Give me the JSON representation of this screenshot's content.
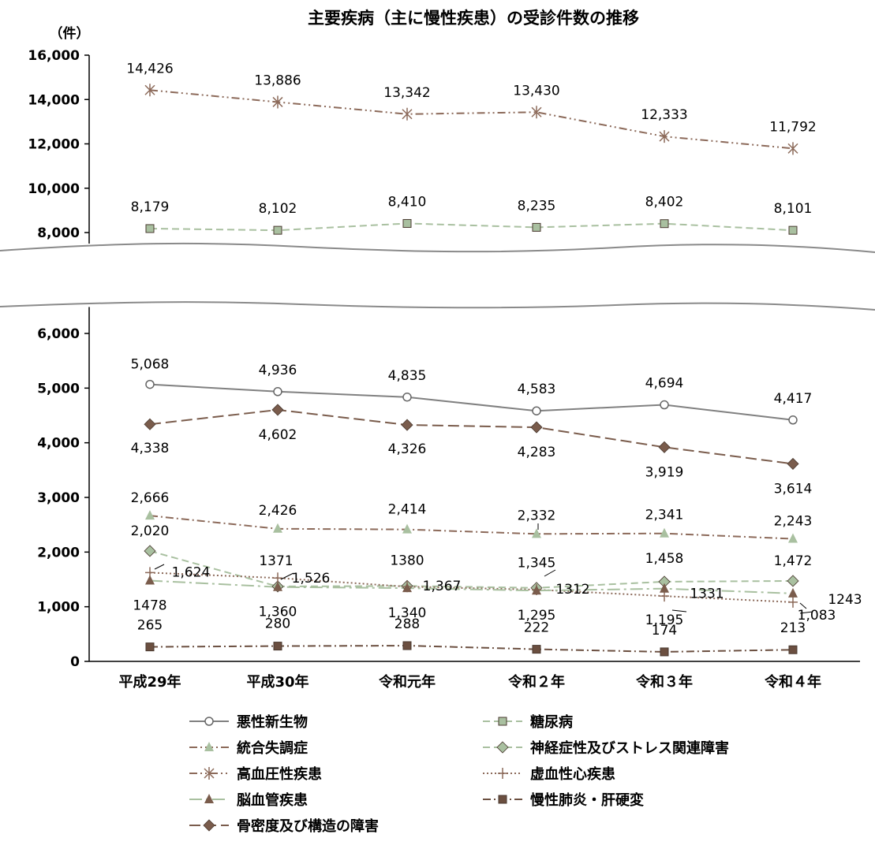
{
  "chart_data": {
    "type": "line",
    "title": "主要疾病（主に慢性疾患）の受診件数の推移",
    "ylabel": "（件）",
    "categories": [
      "平成29年",
      "平成30年",
      "令和元年",
      "令和２年",
      "令和３年",
      "令和４年"
    ],
    "axis_break": true,
    "upper_panel": {
      "ylim": [
        8000,
        16000
      ],
      "ticks": [
        "8,000",
        "10,000",
        "12,000",
        "14,000",
        "16,000"
      ]
    },
    "lower_panel": {
      "ylim": [
        0,
        6000
      ],
      "ticks": [
        "0",
        "1,000",
        "2,000",
        "3,000",
        "4,000",
        "5,000",
        "6,000"
      ]
    },
    "grid": false,
    "legend_position": "bottom",
    "series": [
      {
        "name": "悪性新生物",
        "values": [
          5068,
          4936,
          4835,
          4583,
          4694,
          4417
        ],
        "labels": [
          "5,068",
          "4,936",
          "4,835",
          "4,583",
          "4,694",
          "4,417"
        ],
        "color": "#808080",
        "marker": "circle-open",
        "dash": "solid",
        "panel": "lower"
      },
      {
        "name": "糖尿病",
        "values": [
          8179,
          8102,
          8410,
          8235,
          8402,
          8101
        ],
        "labels": [
          "8,179",
          "8,102",
          "8,410",
          "8,235",
          "8,402",
          "8,101"
        ],
        "color": "#a9c0a0",
        "marker": "square",
        "dash": "dashed",
        "panel": "upper"
      },
      {
        "name": "統合失調症",
        "values": [
          2666,
          2426,
          2414,
          2332,
          2341,
          2243
        ],
        "labels": [
          "2,666",
          "2,426",
          "2,414",
          "2,332",
          "2,341",
          "2,243"
        ],
        "color": "#b08a78",
        "line_color": "#8c6a5a",
        "marker": "triangle",
        "marker_color": "#a9c0a0",
        "dash": "dashdot",
        "panel": "lower"
      },
      {
        "name": "神経症性及びストレス関連障害",
        "values": [
          2020,
          1371,
          1380,
          1345,
          1458,
          1472
        ],
        "labels": [
          "2,020",
          "1371",
          "1380",
          "1,345",
          "1,458",
          "1,472"
        ],
        "color": "#a9c0a0",
        "marker": "diamond",
        "dash": "dashed",
        "panel": "lower"
      },
      {
        "name": "高血圧性疾患",
        "values": [
          14426,
          13886,
          13342,
          13430,
          12333,
          11792
        ],
        "labels": [
          "14,426",
          "13,886",
          "13,342",
          "13,430",
          "12,333",
          "11,792"
        ],
        "color": "#8c6a5a",
        "marker": "star",
        "dash": "dashdotdot",
        "panel": "upper"
      },
      {
        "name": "虚血性心疾患",
        "values": [
          1624,
          1526,
          1367,
          1312,
          1195,
          1083
        ],
        "labels": [
          "1,624",
          "1,526",
          "1,367",
          "1312",
          "1,195",
          "1,083"
        ],
        "color": "#8c6a5a",
        "marker": "plus",
        "dash": "dotted",
        "panel": "lower"
      },
      {
        "name": "脳血管疾患",
        "values": [
          1478,
          1360,
          1340,
          1295,
          1331,
          1243
        ],
        "labels": [
          "1478",
          "1,360",
          "1,340",
          "1,295",
          "1331",
          "1243"
        ],
        "color": "#a9c0a0",
        "line_color": "#a9c0a0",
        "marker": "triangle",
        "marker_color": "#7a5c4c",
        "dash": "longdashdot",
        "panel": "lower"
      },
      {
        "name": "慢性肺炎・肝硬変",
        "values": [
          265,
          280,
          288,
          222,
          174,
          213
        ],
        "labels": [
          "265",
          "280",
          "288",
          "222",
          "174",
          "213"
        ],
        "color": "#6b4f40",
        "marker": "square",
        "dash": "dashdot",
        "panel": "lower"
      },
      {
        "name": "骨密度及び構造の障害",
        "values": [
          4338,
          4602,
          4326,
          4283,
          3919,
          3614
        ],
        "labels": [
          "4,338",
          "4,602",
          "4,326",
          "4,283",
          "3,919",
          "3,614"
        ],
        "color": "#7a5c4c",
        "marker": "diamond",
        "dash": "longdash",
        "panel": "lower"
      }
    ]
  }
}
